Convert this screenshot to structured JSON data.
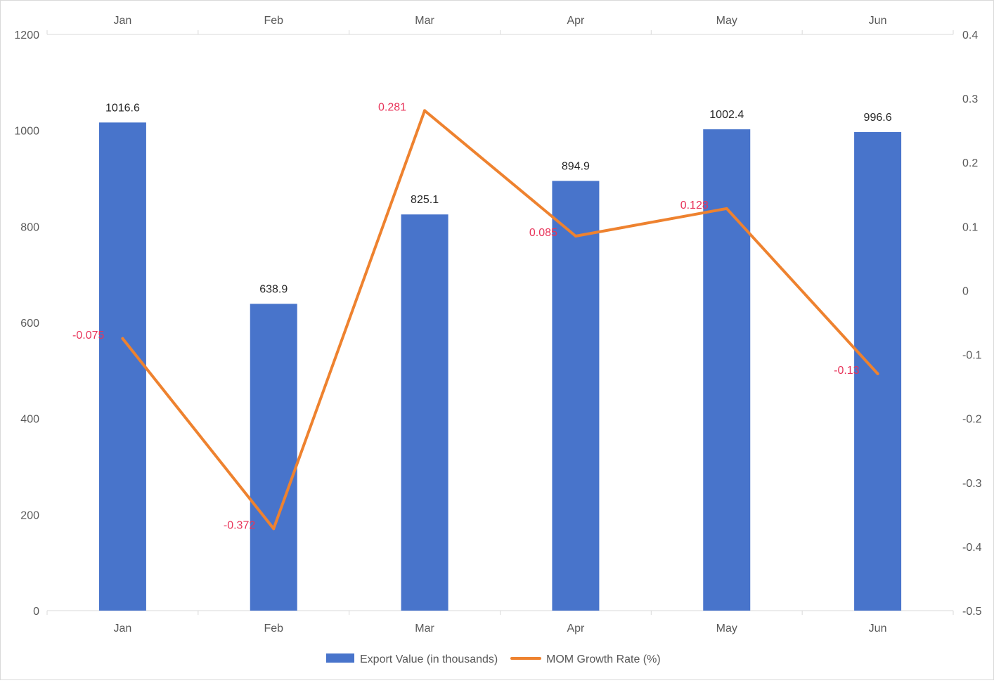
{
  "chart_data": {
    "type": "bar+line",
    "categories": [
      "Jan",
      "Feb",
      "Mar",
      "Apr",
      "May",
      "Jun"
    ],
    "series": [
      {
        "name": "Export Value (in thousands)",
        "type": "bar",
        "axis": "left",
        "color": "#4874CB",
        "values": [
          1016.6,
          638.9,
          825.1,
          894.9,
          1002.4,
          996.6
        ],
        "labels": [
          "1016.6",
          "638.9",
          "825.1",
          "894.9",
          "1002.4",
          "996.6"
        ]
      },
      {
        "name": "MOM Growth Rate (%)",
        "type": "line",
        "axis": "right",
        "color": "#EE822F",
        "label_color": "#E8345A",
        "values": [
          -0.075,
          -0.372,
          0.281,
          0.085,
          0.128,
          -0.13
        ],
        "labels": [
          "-0.075",
          "-0.372",
          "0.281",
          "0.085",
          "0.128",
          "-0.13"
        ]
      }
    ],
    "y_left": {
      "min": 0,
      "max": 1200,
      "ticks": [
        "0",
        "200",
        "400",
        "600",
        "800",
        "1000",
        "1200"
      ]
    },
    "y_right": {
      "min": -0.5,
      "max": 0.4,
      "ticks": [
        "-0.5",
        "-0.4",
        "-0.3",
        "-0.2",
        "-0.1",
        "0",
        "0.1",
        "0.2",
        "0.3",
        "0.4"
      ]
    },
    "x_axis_top": true,
    "x_axis_bottom": true,
    "grid": false,
    "legend_position": "bottom-center",
    "title": "",
    "xlabel": "",
    "ylabel": ""
  }
}
